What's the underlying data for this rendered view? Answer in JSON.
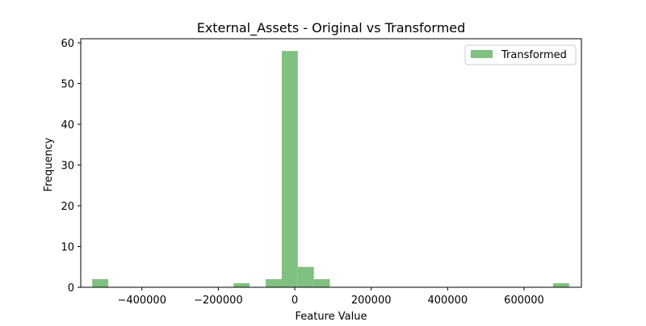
{
  "chart_data": {
    "type": "bar",
    "title": "External_Assets - Original vs Transformed",
    "xlabel": "Feature Value",
    "ylabel": "Frequency",
    "xlim": [
      -560000,
      750000
    ],
    "ylim": [
      0,
      61
    ],
    "x_ticks": [
      -400000,
      -200000,
      0,
      200000,
      400000,
      600000
    ],
    "x_tick_labels": [
      "−400000",
      "−200000",
      "0",
      "200000",
      "400000",
      "600000"
    ],
    "y_ticks": [
      0,
      10,
      20,
      30,
      40,
      50,
      60
    ],
    "y_tick_labels": [
      "0",
      "10",
      "20",
      "30",
      "40",
      "50",
      "60"
    ],
    "grid": false,
    "legend": {
      "position": "top-right"
    },
    "series": [
      {
        "name": "Transformed",
        "color": "#80c080",
        "bins": [
          {
            "x0": -530000,
            "x1": -488000,
            "count": 2
          },
          {
            "x0": -160000,
            "x1": -118000,
            "count": 1
          },
          {
            "x0": -76000,
            "x1": -34000,
            "count": 2
          },
          {
            "x0": -34000,
            "x1": 8000,
            "count": 58
          },
          {
            "x0": 8000,
            "x1": 50000,
            "count": 5
          },
          {
            "x0": 50000,
            "x1": 92000,
            "count": 2
          },
          {
            "x0": 676000,
            "x1": 718000,
            "count": 1
          }
        ]
      }
    ]
  }
}
